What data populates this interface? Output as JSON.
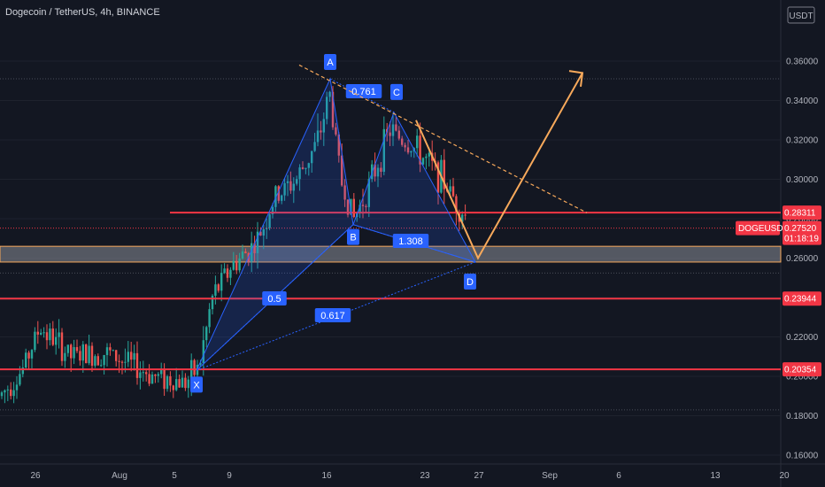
{
  "header": {
    "title": "Dogecoin / TetherUS, 4h, BINANCE",
    "currency": "USDT"
  },
  "chart_data": {
    "type": "candlestick",
    "symbol": "DOGEUSDT",
    "ylim": [
      0.155,
      0.37
    ],
    "yticks": [
      "0.36000",
      "0.34000",
      "0.32000",
      "0.30000",
      "0.28000",
      "0.26000",
      "0.24000",
      "0.22000",
      "0.20000",
      "0.18000",
      "0.16000"
    ],
    "xticks": [
      "26",
      "Aug",
      "5",
      "9",
      "16",
      "23",
      "27",
      "Sep",
      "6",
      "13",
      "20"
    ],
    "price": {
      "label": "DOGEUSDT",
      "value": "0.27520",
      "countdown": "01:18:19"
    },
    "levels": [
      {
        "value": 0.28311,
        "label": "0.28311",
        "color": "#f23645"
      },
      {
        "value": 0.23944,
        "label": "0.23944",
        "color": "#f23645"
      },
      {
        "value": 0.20354,
        "label": "0.20354",
        "color": "#f23645"
      }
    ],
    "zone": {
      "low": 0.258,
      "high": 0.266,
      "color": "#787b86"
    },
    "pattern_points": [
      {
        "name": "X",
        "value": 0.203
      },
      {
        "name": "A",
        "value": 0.351
      },
      {
        "name": "B",
        "value": 0.277
      },
      {
        "name": "C",
        "value": 0.334
      },
      {
        "name": "D",
        "value": 0.258
      }
    ],
    "ratios": [
      "0.761",
      "0.5",
      "1.308",
      "0.617"
    ]
  },
  "colors": {
    "up": "#26a69a",
    "down": "#ef5350",
    "pattern": "#2962ff",
    "projection": "#f7a95b"
  }
}
